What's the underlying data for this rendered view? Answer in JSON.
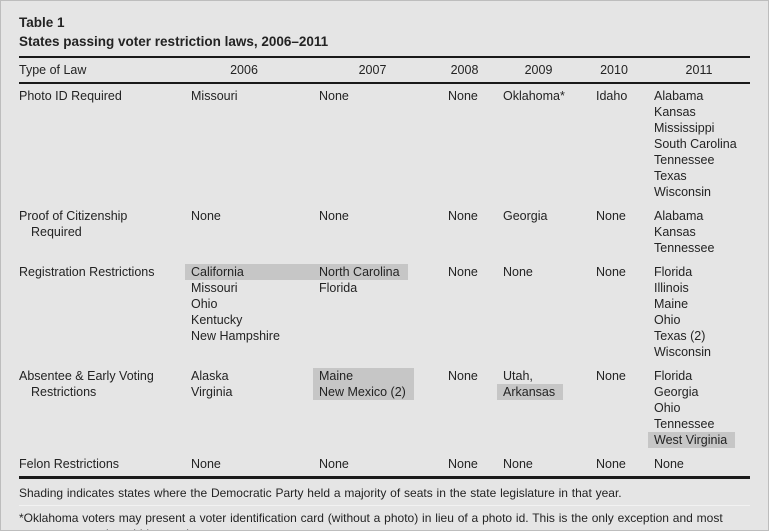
{
  "title": "Table 1",
  "subtitle": "States passing voter restriction laws, 2006–2011",
  "columns": [
    "Type of Law",
    "2006",
    "2007",
    "2008",
    "2009",
    "2010",
    "2011"
  ],
  "rows": [
    {
      "label_lines": [
        "Photo ID Required"
      ],
      "cells": [
        [
          {
            "lines": [
              "Missouri"
            ]
          }
        ],
        [
          {
            "lines": [
              "None"
            ]
          }
        ],
        [
          {
            "lines": [
              "None"
            ]
          }
        ],
        [
          {
            "lines": [
              "Oklahoma*"
            ]
          }
        ],
        [
          {
            "lines": [
              "Idaho"
            ]
          }
        ],
        [
          {
            "lines": [
              "Alabama",
              "Kansas",
              "Mississippi",
              "South Carolina",
              "Tennessee",
              "Texas",
              "Wisconsin"
            ]
          }
        ]
      ]
    },
    {
      "label_lines": [
        "Proof of Citizenship",
        "Required"
      ],
      "cells": [
        [
          {
            "lines": [
              "None"
            ]
          }
        ],
        [
          {
            "lines": [
              "None"
            ]
          }
        ],
        [
          {
            "lines": [
              "None"
            ]
          }
        ],
        [
          {
            "lines": [
              "Georgia"
            ]
          }
        ],
        [
          {
            "lines": [
              "None"
            ]
          }
        ],
        [
          {
            "lines": [
              "Alabama",
              "Kansas",
              "Tennessee"
            ]
          }
        ]
      ]
    },
    {
      "label_lines": [
        "Registration Restrictions"
      ],
      "cells": [
        [
          {
            "lines": [
              "California"
            ],
            "shaded": true,
            "wide": true
          },
          {
            "lines": [
              "Missouri",
              "Ohio",
              "Kentucky",
              "New Hampshire"
            ]
          }
        ],
        [
          {
            "lines": [
              "North Carolina"
            ],
            "shaded": true
          },
          {
            "lines": [
              "Florida"
            ]
          }
        ],
        [
          {
            "lines": [
              "None"
            ]
          }
        ],
        [
          {
            "lines": [
              "None"
            ]
          }
        ],
        [
          {
            "lines": [
              "None"
            ]
          }
        ],
        [
          {
            "lines": [
              "Florida",
              "Illinois",
              "Maine",
              "Ohio",
              "Texas (2)",
              "Wisconsin"
            ]
          }
        ]
      ]
    },
    {
      "label_lines": [
        "Absentee & Early Voting",
        "Restrictions"
      ],
      "cells": [
        [
          {
            "lines": [
              "Alaska",
              "Virginia"
            ]
          }
        ],
        [
          {
            "lines": [
              "Maine",
              "New Mexico (2)"
            ],
            "shaded": true
          }
        ],
        [
          {
            "lines": [
              "None"
            ]
          }
        ],
        [
          {
            "lines": [
              "Utah,"
            ]
          },
          {
            "lines": [
              "Arkansas"
            ],
            "shaded": true
          }
        ],
        [
          {
            "lines": [
              "None"
            ]
          }
        ],
        [
          {
            "lines": [
              "Florida",
              "Georgia",
              "Ohio",
              "Tennessee"
            ]
          },
          {
            "lines": [
              "West Virginia"
            ],
            "shaded": true
          }
        ]
      ]
    },
    {
      "label_lines": [
        "Felon Restrictions"
      ],
      "cells": [
        [
          {
            "lines": [
              "None"
            ]
          }
        ],
        [
          {
            "lines": [
              "None"
            ]
          }
        ],
        [
          {
            "lines": [
              "None"
            ]
          }
        ],
        [
          {
            "lines": [
              "None"
            ]
          }
        ],
        [
          {
            "lines": [
              "None"
            ]
          }
        ],
        [
          {
            "lines": [
              "None"
            ]
          }
        ]
      ]
    }
  ],
  "footnotes": [
    "Shading indicates states where the Democratic Party held a majority of seats in the state legislature in that year.",
    "*Oklahoma voters may present a voter identification card (without a photo) in lieu of a photo id. This is the only exception and most voters present photo id in practice."
  ],
  "colors": {
    "background": "#e5e5e5",
    "shading": "#c6c6c6",
    "text": "#232323",
    "rule": "#1a1a1a"
  }
}
